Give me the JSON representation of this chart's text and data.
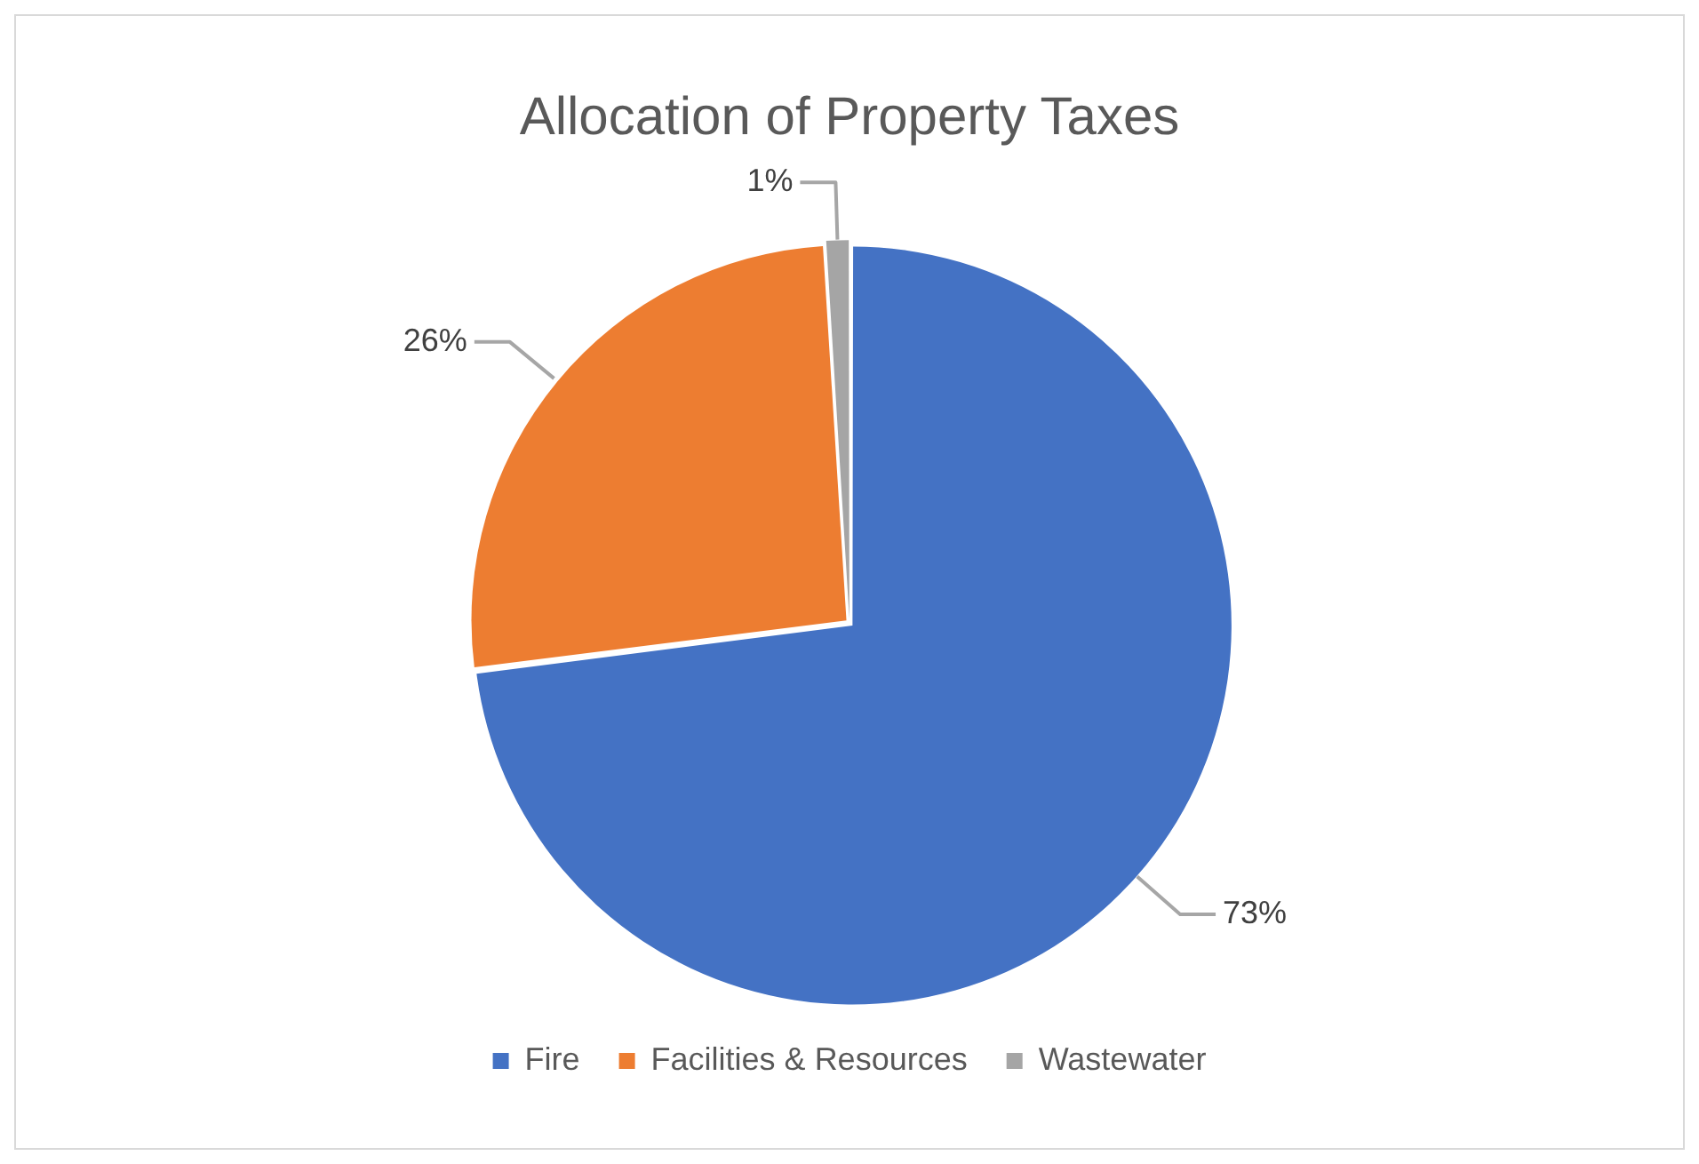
{
  "chart_data": {
    "type": "pie",
    "title": "Allocation of Property Taxes",
    "categories": [
      "Fire",
      "Facilities & Resources",
      "Wastewater"
    ],
    "values": [
      73,
      26,
      1
    ],
    "colors": [
      "#4472c4",
      "#ed7d31",
      "#a5a5a5"
    ],
    "value_labels": [
      "73%",
      "26%",
      "1%"
    ],
    "legend": "bottom"
  }
}
